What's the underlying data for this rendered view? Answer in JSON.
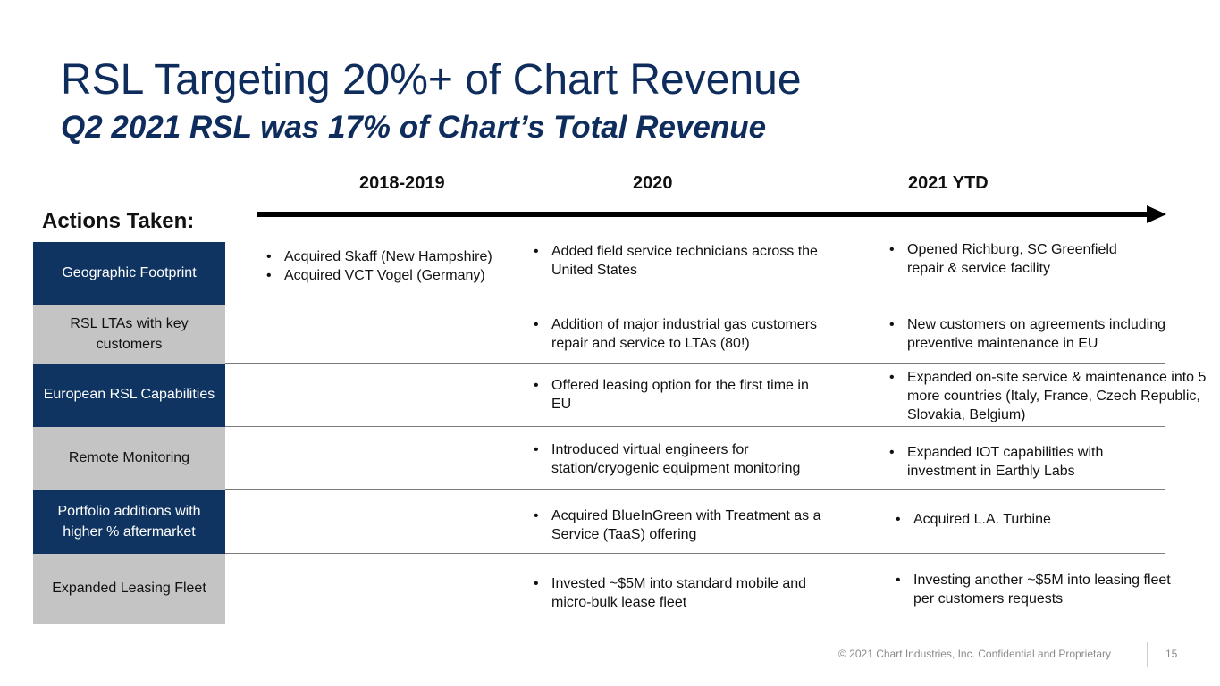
{
  "title": "RSL Targeting 20%+ of Chart Revenue",
  "subtitle": "Q2 2021 RSL was 17% of Chart’s Total Revenue",
  "years": [
    "2018-2019",
    "2020",
    "2021 YTD"
  ],
  "actions_label": "Actions Taken:",
  "colors": {
    "navy": "#0f3461",
    "title": "#0f2d5c",
    "gray_box": "#c4c4c4"
  },
  "rows": [
    {
      "label": "Geographic Footprint",
      "y2018": [
        "Acquired Skaff (New Hampshire)",
        "Acquired VCT Vogel (Germany)"
      ],
      "y2020": [
        "Added field service technicians across the United States"
      ],
      "y2021": [
        "Opened Richburg, SC Greenfield repair & service facility"
      ]
    },
    {
      "label": "RSL LTAs with key customers",
      "y2018": [],
      "y2020": [
        "Addition of major industrial gas customers repair and service to LTAs (80!)"
      ],
      "y2021": [
        "New customers on agreements including preventive maintenance in EU"
      ]
    },
    {
      "label": "European RSL Capabilities",
      "y2018": [],
      "y2020": [
        "Offered leasing option for the first time in EU"
      ],
      "y2021": [
        "Expanded on-site service & maintenance into 5 more countries (Italy, France, Czech Republic, Slovakia, Belgium)"
      ]
    },
    {
      "label": "Remote Monitoring",
      "y2018": [],
      "y2020": [
        "Introduced virtual engineers for station/cryogenic equipment monitoring"
      ],
      "y2021": [
        "Expanded IOT capabilities with investment in Earthly Labs"
      ]
    },
    {
      "label": "Portfolio additions with higher % aftermarket",
      "y2018": [],
      "y2020": [
        "Acquired BlueInGreen with Treatment as a Service (TaaS) offering"
      ],
      "y2021": [
        "Acquired L.A. Turbine"
      ]
    },
    {
      "label": "Expanded Leasing Fleet",
      "y2018": [],
      "y2020": [
        "Invested ~$5M into standard mobile and micro-bulk lease fleet"
      ],
      "y2021": [
        "Investing another ~$5M into leasing fleet per customers requests"
      ]
    }
  ],
  "footer": {
    "copyright": "© 2021 Chart Industries, Inc. Confidential and Proprietary",
    "page_number": "15"
  }
}
